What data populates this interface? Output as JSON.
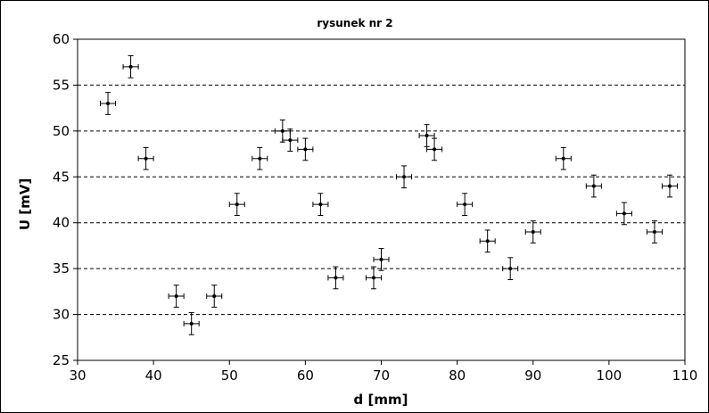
{
  "chart_data": {
    "type": "scatter",
    "title": "rysunek nr 2",
    "xlabel": "d [mm]",
    "ylabel": "U [mV]",
    "xlim": [
      30,
      110
    ],
    "ylim": [
      25,
      60
    ],
    "xticks": [
      30,
      40,
      50,
      60,
      70,
      80,
      90,
      100,
      110
    ],
    "yticks": [
      25,
      30,
      35,
      40,
      45,
      50,
      55,
      60
    ],
    "grid": "horizontal-dashed",
    "legend": "none",
    "marker_color": "#000000",
    "error_x": 1,
    "error_y": 1.2,
    "points": [
      {
        "x": 34,
        "y": 53
      },
      {
        "x": 37,
        "y": 57
      },
      {
        "x": 39,
        "y": 47
      },
      {
        "x": 43,
        "y": 32
      },
      {
        "x": 45,
        "y": 29
      },
      {
        "x": 48,
        "y": 32
      },
      {
        "x": 51,
        "y": 42
      },
      {
        "x": 54,
        "y": 47
      },
      {
        "x": 57,
        "y": 50
      },
      {
        "x": 58,
        "y": 49
      },
      {
        "x": 60,
        "y": 48
      },
      {
        "x": 62,
        "y": 42
      },
      {
        "x": 64,
        "y": 34
      },
      {
        "x": 69,
        "y": 34
      },
      {
        "x": 70,
        "y": 36
      },
      {
        "x": 73,
        "y": 45
      },
      {
        "x": 76,
        "y": 49.5
      },
      {
        "x": 77,
        "y": 48
      },
      {
        "x": 81,
        "y": 42
      },
      {
        "x": 84,
        "y": 38
      },
      {
        "x": 87,
        "y": 35
      },
      {
        "x": 90,
        "y": 39
      },
      {
        "x": 94,
        "y": 47
      },
      {
        "x": 98,
        "y": 44
      },
      {
        "x": 102,
        "y": 41
      },
      {
        "x": 106,
        "y": 39
      },
      {
        "x": 108,
        "y": 44
      }
    ]
  }
}
